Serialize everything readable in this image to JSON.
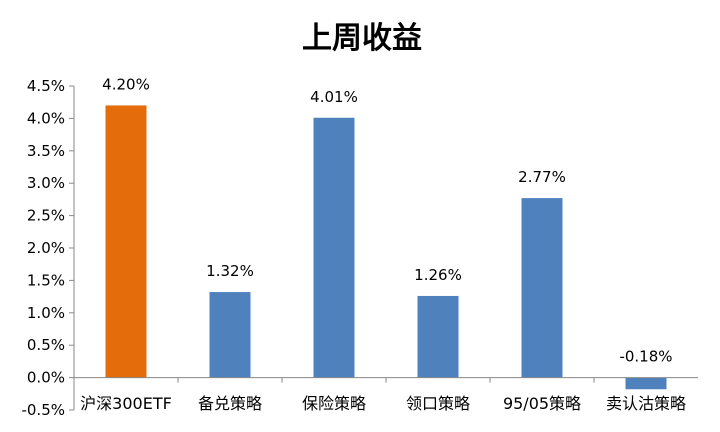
{
  "chart_data": {
    "type": "bar",
    "title": "上周收益",
    "categories": [
      "沪深300ETF",
      "备兑策略",
      "保险策略",
      "领口策略",
      "95/05策略",
      "卖认沽策略"
    ],
    "values": [
      4.2,
      1.32,
      4.01,
      1.26,
      2.77,
      -0.18
    ],
    "data_labels": [
      "4.20%",
      "1.32%",
      "4.01%",
      "1.26%",
      "2.77%",
      "-0.18%"
    ],
    "bar_colors": [
      "#E46C0A",
      "#4F81BD",
      "#4F81BD",
      "#4F81BD",
      "#4F81BD",
      "#4F81BD"
    ],
    "y_ticks": [
      -0.5,
      0.0,
      0.5,
      1.0,
      1.5,
      2.0,
      2.5,
      3.0,
      3.5,
      4.0,
      4.5
    ],
    "y_tick_labels": [
      "-0.5%",
      "0.0%",
      "0.5%",
      "1.0%",
      "1.5%",
      "2.0%",
      "2.5%",
      "3.0%",
      "3.5%",
      "4.0%",
      "4.5%"
    ],
    "ylim": [
      -0.5,
      4.5
    ],
    "xlabel": "",
    "ylabel": "",
    "grid": false,
    "legend": "none"
  }
}
